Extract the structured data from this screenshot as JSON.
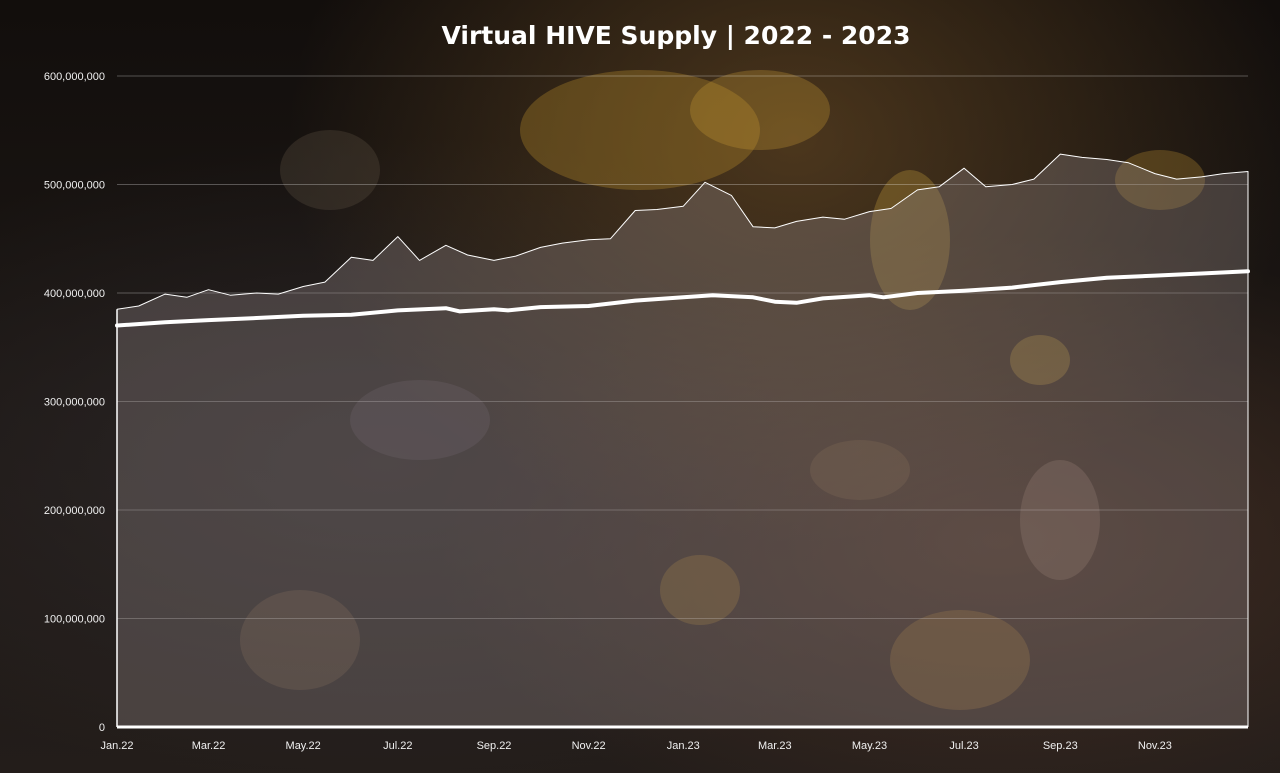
{
  "chart_data": {
    "type": "area",
    "title": "Virtual HIVE Supply | 2022 - 2023",
    "xlabel": "",
    "ylabel": "",
    "ylim": [
      0,
      600000000
    ],
    "y_ticks": [
      "0",
      "100,000,000",
      "200,000,000",
      "300,000,000",
      "400,000,000",
      "500,000,000",
      "600,000,000"
    ],
    "x_ticks": [
      "Jan.22",
      "Mar.22",
      "May.22",
      "Jul.22",
      "Sep.22",
      "Nov.22",
      "Jan.23",
      "Mar.23",
      "May.23",
      "Jul.23",
      "Sep.23",
      "Nov.23"
    ],
    "grid": true,
    "legend": "none",
    "series": [
      {
        "x": [
          "2022-01-01",
          "2022-01-15",
          "2022-02-01",
          "2022-02-15",
          "2022-03-01",
          "2022-03-15",
          "2022-04-01",
          "2022-04-15",
          "2022-05-01",
          "2022-05-15",
          "2022-06-01",
          "2022-06-15",
          "2022-07-01",
          "2022-07-15",
          "2022-08-01",
          "2022-08-15",
          "2022-09-01",
          "2022-09-15",
          "2022-10-01",
          "2022-10-15",
          "2022-11-01",
          "2022-11-15",
          "2022-12-01",
          "2022-12-15",
          "2023-01-01",
          "2023-01-15",
          "2023-02-01",
          "2023-02-15",
          "2023-03-01",
          "2023-03-15",
          "2023-04-01",
          "2023-04-15",
          "2023-05-01",
          "2023-05-15",
          "2023-06-01",
          "2023-06-15",
          "2023-07-01",
          "2023-07-15",
          "2023-08-01",
          "2023-08-15",
          "2023-09-01",
          "2023-09-15",
          "2023-10-01",
          "2023-10-15",
          "2023-11-01",
          "2023-11-15",
          "2023-12-01",
          "2023-12-15",
          "2023-12-31"
        ],
        "values": [
          385000000,
          388000000,
          399000000,
          396000000,
          403000000,
          398000000,
          400000000,
          399000000,
          406000000,
          410000000,
          433000000,
          430000000,
          452000000,
          430000000,
          444000000,
          435000000,
          430000000,
          434000000,
          442000000,
          446000000,
          449000000,
          450000000,
          476000000,
          477000000,
          480000000,
          502000000,
          490000000,
          461000000,
          460000000,
          466000000,
          470000000,
          468000000,
          475000000,
          478000000,
          495000000,
          498000000,
          515000000,
          498000000,
          500000000,
          505000000,
          528000000,
          525000000,
          523000000,
          520000000,
          510000000,
          505000000,
          507000000,
          510000000,
          512000000
        ]
      },
      {
        "x": [
          "2022-01-01",
          "2022-02-01",
          "2022-03-01",
          "2022-04-01",
          "2022-05-01",
          "2022-06-01",
          "2022-07-01",
          "2022-08-01",
          "2022-08-10",
          "2022-09-01",
          "2022-09-10",
          "2022-10-01",
          "2022-11-01",
          "2022-12-01",
          "2023-01-01",
          "2023-01-20",
          "2023-02-15",
          "2023-03-01",
          "2023-03-15",
          "2023-04-01",
          "2023-05-01",
          "2023-05-10",
          "2023-06-01",
          "2023-07-01",
          "2023-08-01",
          "2023-09-01",
          "2023-10-01",
          "2023-11-01",
          "2023-12-01",
          "2023-12-31"
        ],
        "values": [
          370000000,
          373000000,
          375000000,
          377000000,
          379000000,
          380000000,
          384000000,
          386000000,
          383000000,
          385000000,
          384000000,
          387000000,
          388000000,
          393000000,
          396000000,
          398000000,
          396000000,
          392000000,
          391000000,
          395000000,
          398000000,
          396000000,
          400000000,
          402000000,
          405000000,
          410000000,
          414000000,
          416000000,
          418000000,
          420000000
        ]
      }
    ]
  }
}
